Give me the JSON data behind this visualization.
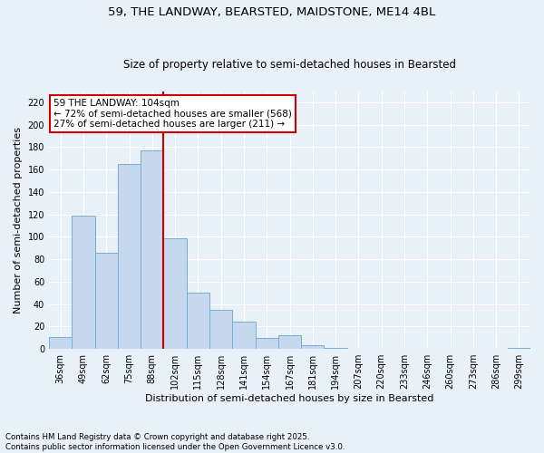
{
  "title_line1": "59, THE LANDWAY, BEARSTED, MAIDSTONE, ME14 4BL",
  "title_line2": "Size of property relative to semi-detached houses in Bearsted",
  "xlabel": "Distribution of semi-detached houses by size in Bearsted",
  "ylabel": "Number of semi-detached properties",
  "categories": [
    "36sqm",
    "49sqm",
    "62sqm",
    "75sqm",
    "88sqm",
    "102sqm",
    "115sqm",
    "128sqm",
    "141sqm",
    "154sqm",
    "167sqm",
    "181sqm",
    "194sqm",
    "207sqm",
    "220sqm",
    "233sqm",
    "246sqm",
    "260sqm",
    "273sqm",
    "286sqm",
    "299sqm"
  ],
  "values": [
    11,
    119,
    86,
    165,
    177,
    99,
    50,
    35,
    24,
    10,
    12,
    3,
    1,
    0,
    0,
    0,
    0,
    0,
    0,
    0,
    1
  ],
  "bar_color": "#c5d8ed",
  "bar_edge_color": "#7aadd4",
  "background_color": "#e8f0f8",
  "grid_color": "#ffffff",
  "vline_index": 5,
  "vline_color": "#cc0000",
  "annotation_text": "59 THE LANDWAY: 104sqm\n← 72% of semi-detached houses are smaller (568)\n27% of semi-detached houses are larger (211) →",
  "annotation_box_color": "#ffffff",
  "annotation_box_edge": "#cc0000",
  "ylim": [
    0,
    230
  ],
  "yticks": [
    0,
    20,
    40,
    60,
    80,
    100,
    120,
    140,
    160,
    180,
    200,
    220
  ],
  "footer_line1": "Contains HM Land Registry data © Crown copyright and database right 2025.",
  "footer_line2": "Contains public sector information licensed under the Open Government Licence v3.0."
}
